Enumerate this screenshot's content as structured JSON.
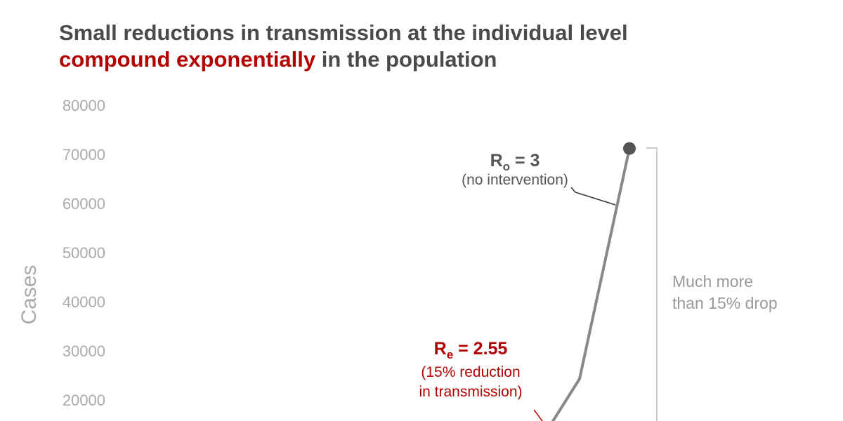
{
  "title": {
    "line1": "Small reductions in transmission at the individual level",
    "line2_highlight": "compound exponentially",
    "line2_rest": " in the population"
  },
  "chart_data": {
    "type": "line",
    "title": "Small reductions in transmission at the individual level compound exponentially in the population",
    "ylabel": "Cases",
    "xlabel": "",
    "ylim": [
      15000,
      80000
    ],
    "yticks": [
      80000,
      70000,
      60000,
      50000,
      40000,
      30000,
      20000
    ],
    "grid": false,
    "series": [
      {
        "name": "R0 = 3 (no intervention)",
        "color": "#888888",
        "points": [
          {
            "x": 0,
            "y": 15000
          },
          {
            "x": 1,
            "y": 24300
          },
          {
            "x": 2,
            "y": 71200
          }
        ]
      },
      {
        "name": "Re = 2.55 (15% reduction in transmission)",
        "color": "#b30000",
        "points": []
      }
    ],
    "annotations": [
      {
        "id": "r0",
        "label_main": "R",
        "label_sub": "o",
        "label_value": " = 3",
        "label_note": "(no intervention)",
        "color": "#555555"
      },
      {
        "id": "re",
        "label_main": "R",
        "label_sub": "e",
        "label_value": " = 2.55",
        "label_note_1": "(15% reduction",
        "label_note_2": "in transmission)",
        "color": "#b30000"
      },
      {
        "id": "bracket",
        "text_1": "Much more",
        "text_2": "than 15% drop",
        "color": "#999999"
      }
    ]
  }
}
